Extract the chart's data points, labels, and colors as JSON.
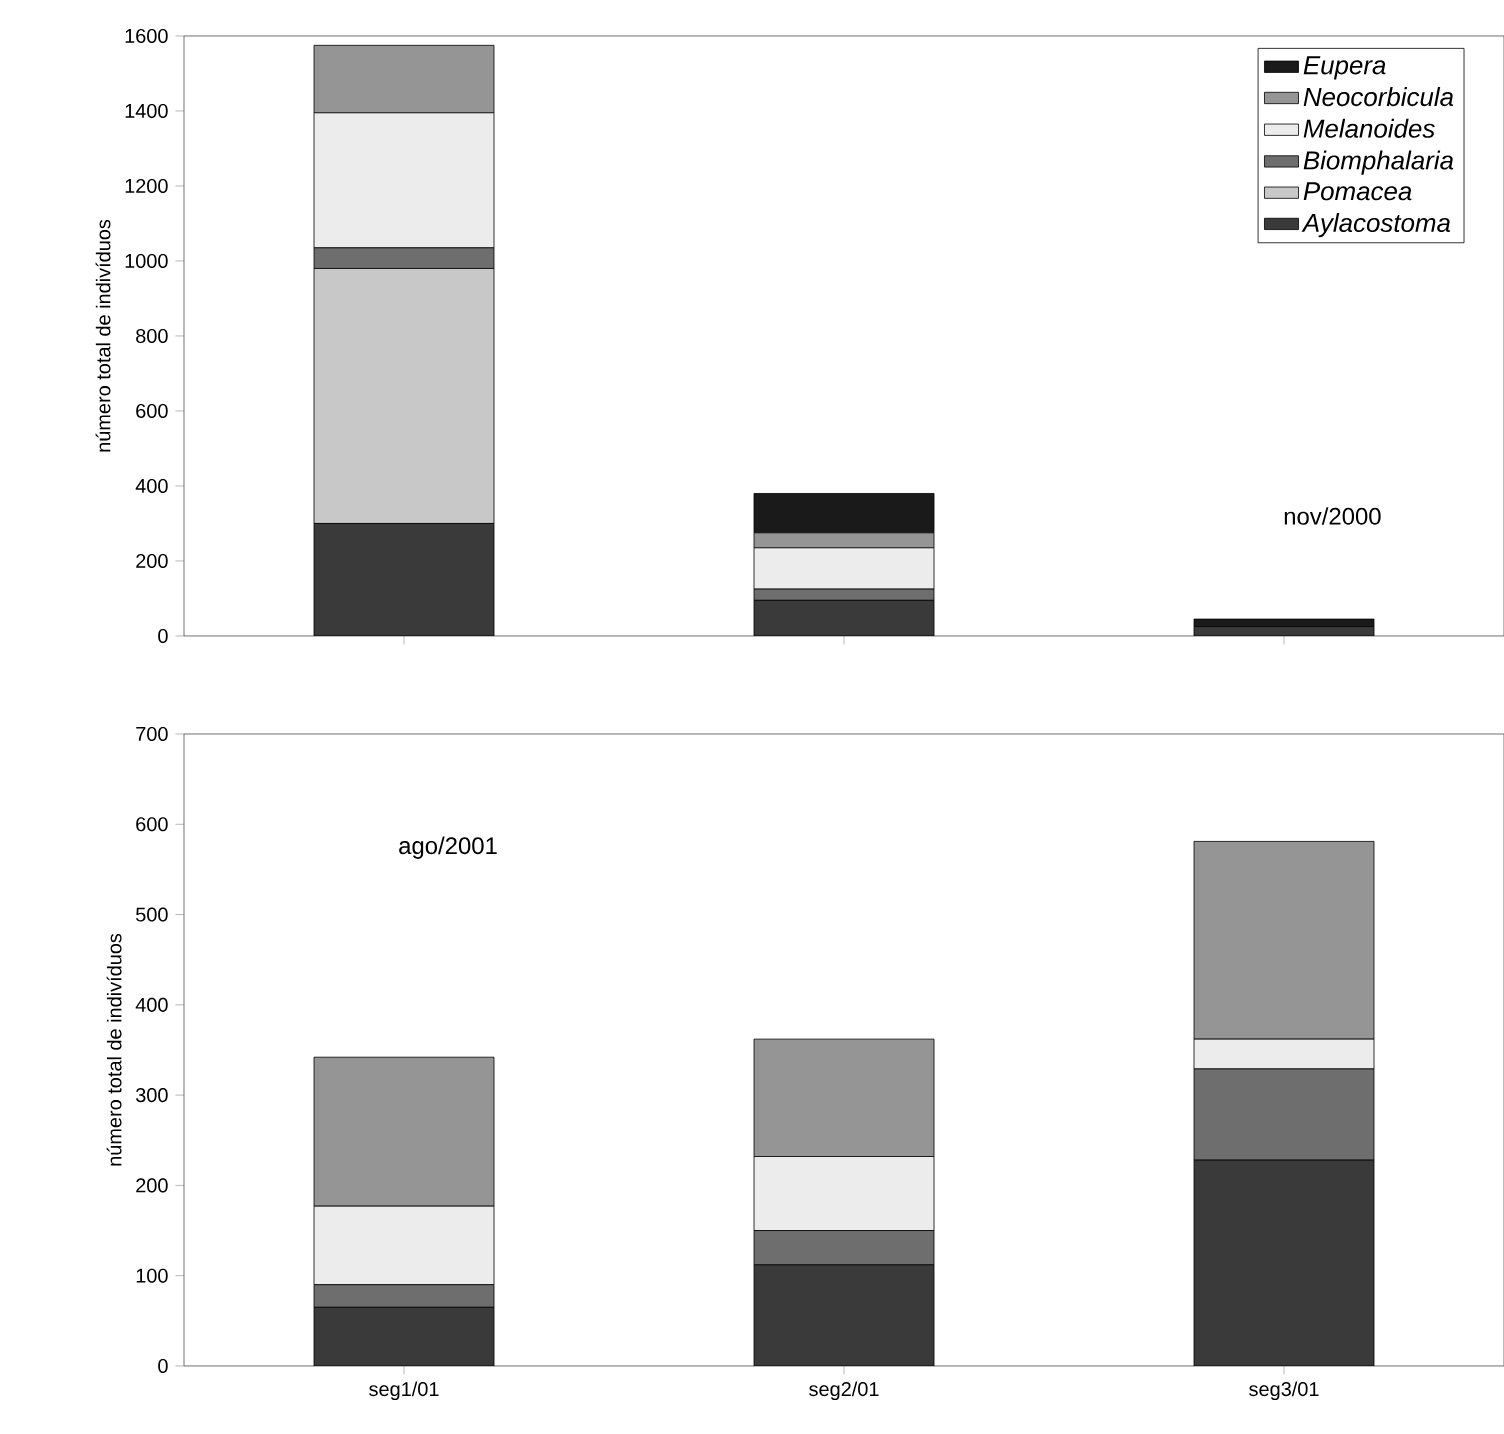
{
  "chart_data": [
    {
      "type": "bar",
      "stacked": true,
      "categories": [
        null,
        null,
        null
      ],
      "tick_labels": "y",
      "ylabel": "número total de indivíduos",
      "ylim": [
        0,
        1600
      ],
      "yticks": [
        0,
        200,
        400,
        600,
        800,
        1000,
        1200,
        1400,
        1600
      ],
      "grid": false,
      "legend": "top right",
      "annotations": [
        "nov/2000"
      ],
      "series": [
        {
          "name": "*Aylacostoma*",
          "color": "#3a3a3a",
          "values": [
            300,
            95,
            25
          ]
        },
        {
          "name": "*Pomacea*",
          "color": "#c8c8c8",
          "values": [
            680,
            0,
            0
          ]
        },
        {
          "name": "*Biomphalaria*",
          "color": "#6e6e6e",
          "values": [
            55,
            30,
            0
          ]
        },
        {
          "name": "*Melanoides*",
          "color": "#ececec",
          "values": [
            360,
            110,
            0
          ]
        },
        {
          "name": "*Neocorbicula*",
          "color": "#959595",
          "values": [
            180,
            40,
            0
          ]
        },
        {
          "name": "*Eupera*",
          "color": "#1a1a1a",
          "values": [
            0,
            105,
            20
          ]
        }
      ]
    },
    {
      "type": "bar",
      "stacked": true,
      "categories": [
        "seg1/01",
        "seg2/01",
        "seg3/01"
      ],
      "ylabel": "número total de indivíduos",
      "ylim": [
        0,
        700
      ],
      "yticks": [
        0,
        100,
        200,
        300,
        400,
        500,
        600,
        700
      ],
      "grid": false,
      "annotations": [
        "ago/2001"
      ],
      "series": [
        {
          "color": "#3a3a3a",
          "values": [
            65,
            112,
            228
          ]
        },
        {
          "color": "#6e6e6e",
          "values": [
            25,
            38,
            101
          ]
        },
        {
          "color": "#ececec",
          "values": [
            87,
            82,
            33
          ]
        },
        {
          "color": "#959595",
          "values": [
            165,
            130,
            219
          ]
        }
      ]
    }
  ]
}
